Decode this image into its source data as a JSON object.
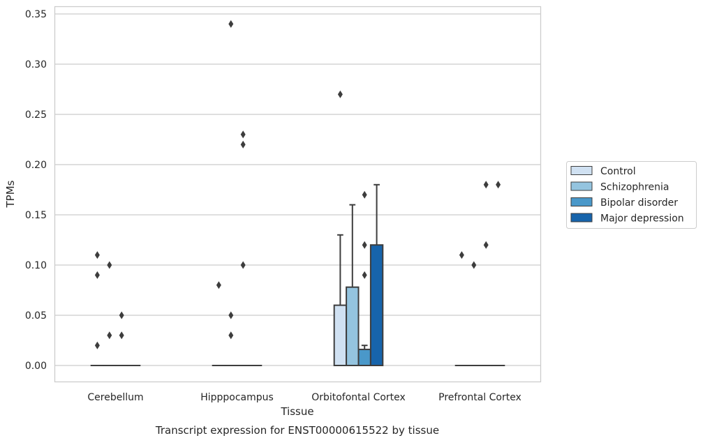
{
  "chart_data": {
    "type": "box",
    "title": "Transcript expression for ENST00000615522 by tissue",
    "xlabel": "Tissue",
    "ylabel": "TPMs",
    "ylim": [
      -0.017,
      0.357
    ],
    "yticks": [
      0.0,
      0.05,
      0.1,
      0.15,
      0.2,
      0.25,
      0.3,
      0.35
    ],
    "ytick_labels": [
      "0.00",
      "0.05",
      "0.10",
      "0.15",
      "0.20",
      "0.25",
      "0.30",
      "0.35"
    ],
    "grid": true,
    "legend_placement": "center-right outside",
    "categories": [
      "Cerebellum",
      "Hipppocampus",
      "Orbitofontal Cortex",
      "Prefrontal Cortex"
    ],
    "series": [
      {
        "name": "Control",
        "color": "#d0e1f2",
        "boxes": [
          {
            "q1": 0,
            "median": 0,
            "q3": 0,
            "whisker_low": 0,
            "whisker_high": 0,
            "outliers": [
              0.02,
              0.11,
              0.09
            ]
          },
          {
            "q1": 0,
            "median": 0,
            "q3": 0,
            "whisker_low": 0,
            "whisker_high": 0,
            "outliers": [
              0.08
            ]
          },
          {
            "q1": 0,
            "median": 0,
            "q3": 0.06,
            "whisker_low": 0,
            "whisker_high": 0.13,
            "outliers": [
              0.27
            ]
          },
          {
            "q1": 0,
            "median": 0,
            "q3": 0,
            "whisker_low": 0,
            "whisker_high": 0,
            "outliers": [
              0.11
            ]
          }
        ]
      },
      {
        "name": "Schizophrenia",
        "color": "#94c4df",
        "boxes": [
          {
            "q1": 0,
            "median": 0,
            "q3": 0,
            "whisker_low": 0,
            "whisker_high": 0,
            "outliers": [
              0.03,
              0.1
            ]
          },
          {
            "q1": 0,
            "median": 0,
            "q3": 0,
            "whisker_low": 0,
            "whisker_high": 0,
            "outliers": [
              0.03,
              0.05,
              0.34
            ]
          },
          {
            "q1": 0,
            "median": 0,
            "q3": 0.078,
            "whisker_low": 0,
            "whisker_high": 0.16,
            "outliers": []
          },
          {
            "q1": 0,
            "median": 0,
            "q3": 0,
            "whisker_low": 0,
            "whisker_high": 0,
            "outliers": [
              0.1
            ]
          }
        ]
      },
      {
        "name": "Bipolar disorder",
        "color": "#4a98c9",
        "boxes": [
          {
            "q1": 0,
            "median": 0,
            "q3": 0,
            "whisker_low": 0,
            "whisker_high": 0,
            "outliers": [
              0.03,
              0.05
            ]
          },
          {
            "q1": 0,
            "median": 0,
            "q3": 0,
            "whisker_low": 0,
            "whisker_high": 0,
            "outliers": [
              0.23,
              0.22,
              0.1
            ]
          },
          {
            "q1": 0,
            "median": 0,
            "q3": 0.016,
            "whisker_low": 0,
            "whisker_high": 0.02,
            "outliers": [
              0.17,
              0.12,
              0.09
            ]
          },
          {
            "q1": 0,
            "median": 0,
            "q3": 0,
            "whisker_low": 0,
            "whisker_high": 0,
            "outliers": [
              0.18,
              0.12
            ]
          }
        ]
      },
      {
        "name": "Major depression",
        "color": "#1764ab",
        "boxes": [
          {
            "q1": 0,
            "median": 0,
            "q3": 0,
            "whisker_low": 0,
            "whisker_high": 0,
            "outliers": []
          },
          {
            "q1": 0,
            "median": 0,
            "q3": 0,
            "whisker_low": 0,
            "whisker_high": 0,
            "outliers": []
          },
          {
            "q1": 0,
            "median": 0,
            "q3": 0.12,
            "whisker_low": 0,
            "whisker_high": 0.18,
            "outliers": []
          },
          {
            "q1": 0,
            "median": 0,
            "q3": 0,
            "whisker_low": 0,
            "whisker_high": 0,
            "outliers": [
              0.18
            ]
          }
        ]
      }
    ]
  }
}
